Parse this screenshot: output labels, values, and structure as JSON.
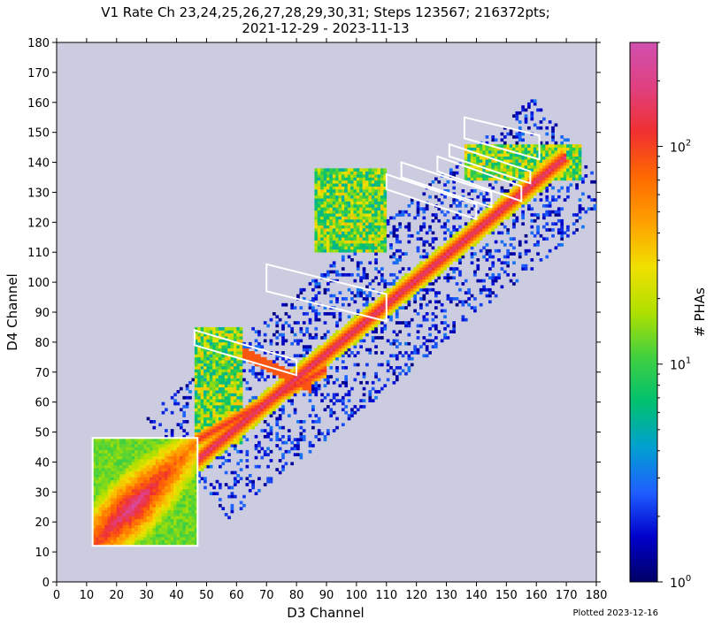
{
  "chart_data": {
    "type": "heatmap",
    "title_line1": "V1 Rate Ch 23,24,25,26,27,28,29,30,31; Steps 123567; 216372pts;",
    "title_line2": "2021-12-29 - 2023-11-13",
    "xlabel": "D3 Channel",
    "ylabel": "D4 Channel",
    "xlim": [
      0,
      180
    ],
    "ylim": [
      0,
      180
    ],
    "xticks": [
      0,
      10,
      20,
      30,
      40,
      50,
      60,
      70,
      80,
      90,
      100,
      110,
      120,
      130,
      140,
      150,
      160,
      170,
      180
    ],
    "yticks": [
      0,
      10,
      20,
      30,
      40,
      50,
      60,
      70,
      80,
      90,
      100,
      110,
      120,
      130,
      140,
      150,
      160,
      170,
      180
    ],
    "colorbar": {
      "label": "# PHAs",
      "scale": "log",
      "range": [
        1,
        300
      ],
      "ticks": [
        {
          "value": 1,
          "base": "10",
          "exp": "0"
        },
        {
          "value": 10,
          "base": "10",
          "exp": "1"
        },
        {
          "value": 100,
          "base": "10",
          "exp": "2"
        }
      ],
      "colormap": [
        "#000066",
        "#0000cc",
        "#1f5fff",
        "#00a0d0",
        "#00c070",
        "#40d040",
        "#b0e000",
        "#f0e000",
        "#ffa000",
        "#ff6a00",
        "#f03030",
        "#e04080",
        "#d050b0"
      ]
    },
    "background_color": "#cccce0",
    "regions": [
      {
        "x": [
          12,
          47
        ],
        "y": [
          12,
          48
        ],
        "level": "high",
        "description_peak": [
          25,
          25
        ]
      },
      {
        "x": [
          46,
          62
        ],
        "y": [
          46,
          85
        ],
        "level": "medium"
      },
      {
        "x": [
          86,
          110
        ],
        "y": [
          110,
          138
        ],
        "level": "medium"
      },
      {
        "x": [
          136,
          175
        ],
        "y": [
          134,
          146
        ],
        "level": "medium"
      }
    ],
    "main_track": {
      "from": [
        12,
        12
      ],
      "to": [
        170,
        142
      ]
    },
    "boxes": [
      {
        "polygon": [
          [
            12,
            12
          ],
          [
            47,
            12
          ],
          [
            47,
            48
          ],
          [
            12,
            48
          ]
        ]
      },
      {
        "polygon": [
          [
            46,
            84
          ],
          [
            80,
            74
          ],
          [
            80,
            69
          ],
          [
            46,
            79
          ]
        ]
      },
      {
        "polygon": [
          [
            70,
            106
          ],
          [
            110,
            96
          ],
          [
            110,
            87
          ],
          [
            70,
            97
          ]
        ]
      },
      {
        "polygon": [
          [
            110,
            136
          ],
          [
            140,
            126
          ],
          [
            140,
            121
          ],
          [
            110,
            131
          ]
        ]
      },
      {
        "polygon": [
          [
            115,
            140
          ],
          [
            145,
            130
          ],
          [
            145,
            125
          ],
          [
            115,
            135
          ]
        ]
      },
      {
        "polygon": [
          [
            127,
            142
          ],
          [
            155,
            132
          ],
          [
            155,
            127
          ],
          [
            127,
            137
          ]
        ]
      },
      {
        "polygon": [
          [
            131,
            146
          ],
          [
            158,
            137
          ],
          [
            158,
            133
          ],
          [
            131,
            142
          ]
        ]
      },
      {
        "polygon": [
          [
            136,
            155
          ],
          [
            161,
            149
          ],
          [
            161,
            141
          ],
          [
            136,
            148
          ]
        ]
      }
    ]
  },
  "footer": {
    "plotted": "Plotted 2023-12-16"
  }
}
